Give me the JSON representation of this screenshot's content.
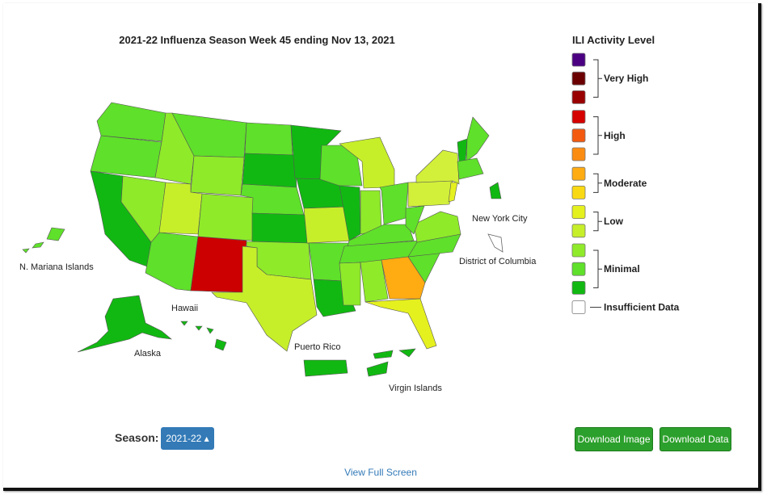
{
  "header": {
    "title": "2021-22 Influenza Season Week 45 ending Nov 13, 2021"
  },
  "map": {
    "labels": [
      "N. Mariana Islands",
      "Hawaii",
      "Alaska",
      "Puerto Rico",
      "Virgin Islands",
      "New York City",
      "District of Columbia"
    ]
  },
  "legend": {
    "title": "ILI Activity Level",
    "groups": [
      {
        "label": "Very High",
        "colors": [
          "#4b0082",
          "#6b0000",
          "#990000"
        ]
      },
      {
        "label": "High",
        "colors": [
          "#d50000",
          "#f35a0f",
          "#fb8c12"
        ]
      },
      {
        "label": "Moderate",
        "colors": [
          "#ffab12",
          "#f9d913"
        ]
      },
      {
        "label": "Low",
        "colors": [
          "#e5f01f",
          "#c6ef2a"
        ]
      },
      {
        "label": "Minimal",
        "colors": [
          "#8fea2a",
          "#5fe02a",
          "#12b812"
        ]
      },
      {
        "label": "Insufficient Data",
        "colors": [
          "#ffffff"
        ]
      }
    ]
  },
  "controls": {
    "season_label": "Season:",
    "season_value": "2021-22",
    "download_image": "Download Image",
    "download_data": "Download Data",
    "full_screen": "View Full Screen"
  }
}
